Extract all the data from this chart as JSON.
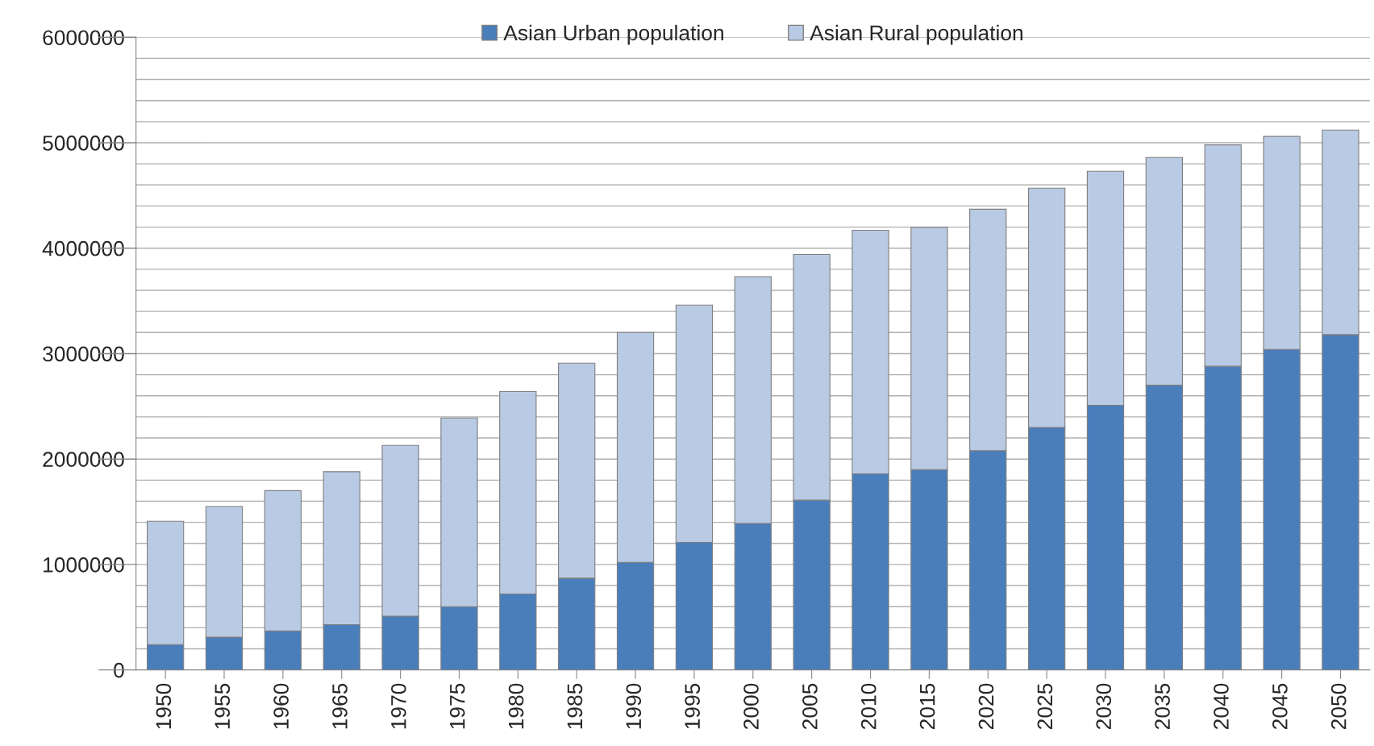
{
  "chart_data": {
    "type": "bar",
    "stacked": true,
    "categories": [
      "1950",
      "1955",
      "1960",
      "1965",
      "1970",
      "1975",
      "1980",
      "1985",
      "1990",
      "1995",
      "2000",
      "2005",
      "2010",
      "2015",
      "2020",
      "2025",
      "2030",
      "2035",
      "2040",
      "2045",
      "2050"
    ],
    "series": [
      {
        "name": "Asian Urban population",
        "color": "#4a7ebb",
        "values": [
          240000,
          310000,
          370000,
          430000,
          510000,
          600000,
          720000,
          870000,
          1020000,
          1210000,
          1390000,
          1610000,
          1860000,
          1900000,
          2080000,
          2300000,
          2510000,
          2700000,
          2880000,
          3040000,
          3180000
        ]
      },
      {
        "name": "Asian Rural population",
        "color": "#b9cae4",
        "values": [
          1170000,
          1240000,
          1330000,
          1450000,
          1620000,
          1790000,
          1920000,
          2040000,
          2180000,
          2250000,
          2340000,
          2330000,
          2310000,
          2300000,
          2290000,
          2270000,
          2220000,
          2160000,
          2100000,
          2020000,
          1940000
        ]
      }
    ],
    "ylim": [
      0,
      6000000
    ],
    "yticks": [
      0,
      {
        "value": 200000,
        "label": null
      },
      {
        "value": 400000,
        "label": null
      },
      {
        "value": 600000,
        "label": null
      },
      {
        "value": 800000,
        "label": null
      },
      1000000,
      {
        "value": 1200000,
        "label": null
      },
      {
        "value": 1400000,
        "label": null
      },
      {
        "value": 1600000,
        "label": null
      },
      {
        "value": 1800000,
        "label": null
      },
      2000000,
      {
        "value": 2200000,
        "label": null
      },
      {
        "value": 2400000,
        "label": null
      },
      {
        "value": 2600000,
        "label": null
      },
      {
        "value": 2800000,
        "label": null
      },
      3000000,
      {
        "value": 3200000,
        "label": null
      },
      {
        "value": 3400000,
        "label": null
      },
      {
        "value": 3600000,
        "label": null
      },
      {
        "value": 3800000,
        "label": null
      },
      4000000,
      {
        "value": 4200000,
        "label": null
      },
      {
        "value": 4400000,
        "label": null
      },
      {
        "value": 4600000,
        "label": null
      },
      {
        "value": 4800000,
        "label": null
      },
      5000000,
      {
        "value": 5200000,
        "label": null
      },
      {
        "value": 5400000,
        "label": null
      },
      {
        "value": 5600000,
        "label": null
      },
      {
        "value": 5800000,
        "label": null
      },
      6000000
    ],
    "grid": "y",
    "legend": "top"
  }
}
